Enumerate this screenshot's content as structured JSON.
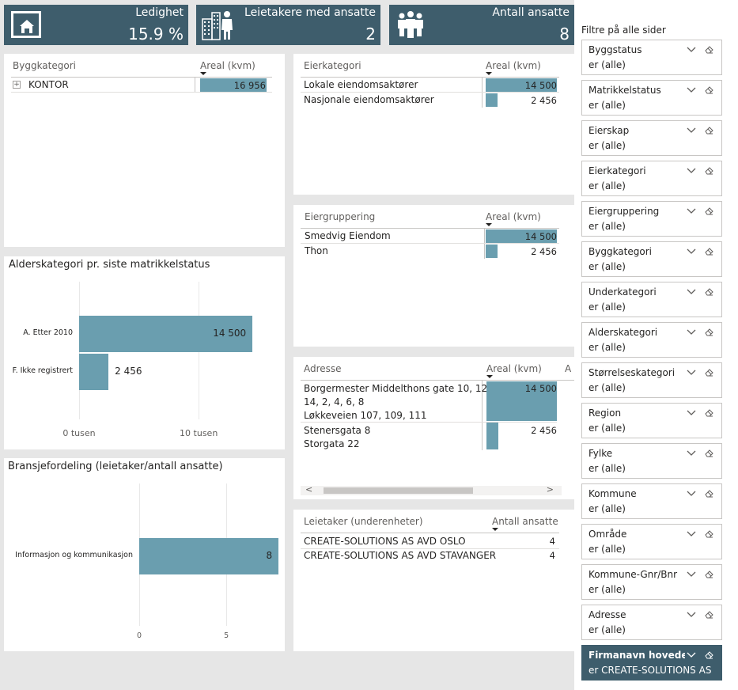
{
  "kpis": {
    "vacancy": {
      "label": "Ledighet",
      "value": "15.9 %",
      "icon": "house-icon"
    },
    "tenants": {
      "label": "Leietakere med ansatte",
      "value": "2",
      "icon": "buildings-person-icon"
    },
    "employees": {
      "label": "Antall ansatte",
      "value": "8",
      "icon": "people-icon"
    }
  },
  "byggkategori_table": {
    "col1": "Byggkategori",
    "col2": "Areal (kvm)",
    "rows": [
      {
        "label": "KONTOR",
        "value": "16 956",
        "num": 16956
      }
    ],
    "expand_glyph": "+"
  },
  "eierkategori_table": {
    "col1": "Eierkategori",
    "col2": "Areal (kvm)",
    "rows": [
      {
        "label": "Lokale eiendomsaktører",
        "value": "14 500",
        "num": 14500
      },
      {
        "label": "Nasjonale eiendomsaktører",
        "value": "2 456",
        "num": 2456
      }
    ]
  },
  "eiergruppering_table": {
    "col1": "Eiergruppering",
    "col2": "Areal (kvm)",
    "rows": [
      {
        "label": "Smedvig Eiendom",
        "value": "14 500",
        "num": 14500
      },
      {
        "label": "Thon",
        "value": "2 456",
        "num": 2456
      }
    ]
  },
  "adresse_table": {
    "col1": "Adresse",
    "col2": "Areal (kvm)",
    "col3": "A",
    "rows": [
      {
        "lines": [
          "Borgermester Middelthons gate 10, 12,",
          "14, 2, 4, 6, 8",
          "Løkkeveien 107, 109, 111"
        ],
        "value": "14 500",
        "num": 14500
      },
      {
        "lines": [
          "Stenersgata 8",
          "Storgata 22"
        ],
        "value": "2 456",
        "num": 2456
      }
    ],
    "scroll_left": "<",
    "scroll_right": ">"
  },
  "leietaker_table": {
    "col1": "Leietaker (underenheter)",
    "col2": "Antall ansatte",
    "rows": [
      {
        "label": "CREATE-SOLUTIONS AS AVD OSLO",
        "value": "4"
      },
      {
        "label": "CREATE-SOLUTIONS AS AVD STAVANGER",
        "value": "4"
      }
    ]
  },
  "chart_alder": {
    "title": "Alderskategori pr. siste matrikkelstatus",
    "chart_data": {
      "type": "bar",
      "orientation": "horizontal",
      "categories": [
        "A. Etter 2010",
        "F. Ikke registrert"
      ],
      "values": [
        14500,
        2456
      ],
      "data_labels": [
        "14 500",
        "2 456"
      ],
      "xlim": [
        0,
        17000
      ],
      "ticks": [
        {
          "v": 0,
          "label": "0 tusen"
        },
        {
          "v": 10000,
          "label": "10 tusen"
        }
      ],
      "color": "#6a9eaf"
    }
  },
  "chart_bransje": {
    "title": "Bransjefordeling (leietaker/antall ansatte)",
    "chart_data": {
      "type": "bar",
      "orientation": "horizontal",
      "categories": [
        "Informasjon og kommunikasjon"
      ],
      "values": [
        8
      ],
      "data_labels": [
        "8"
      ],
      "xlim": [
        0,
        7.9
      ],
      "ticks": [
        {
          "v": 0,
          "label": "0"
        },
        {
          "v": 5,
          "label": "5"
        }
      ],
      "color": "#6a9eaf"
    }
  },
  "filters": {
    "header": "Filtre på alle sider",
    "items": [
      {
        "name": "Byggstatus",
        "value": "er (alle)"
      },
      {
        "name": "Matrikkelstatus",
        "value": "er (alle)"
      },
      {
        "name": "Eierskap",
        "value": "er (alle)"
      },
      {
        "name": "Eierkategori",
        "value": "er (alle)"
      },
      {
        "name": "Eiergruppering",
        "value": "er (alle)"
      },
      {
        "name": "Byggkategori",
        "value": "er (alle)"
      },
      {
        "name": "Underkategori",
        "value": "er (alle)"
      },
      {
        "name": "Alderskategori",
        "value": "er (alle)"
      },
      {
        "name": "Størrelseskategori",
        "value": "er (alle)"
      },
      {
        "name": "Region",
        "value": "er (alle)"
      },
      {
        "name": "Fylke",
        "value": "er (alle)"
      },
      {
        "name": "Kommune",
        "value": "er (alle)"
      },
      {
        "name": "Område",
        "value": "er (alle)"
      },
      {
        "name": "Kommune-Gnr/Bnr",
        "value": "er (alle)"
      },
      {
        "name": "Adresse",
        "value": "er (alle)"
      },
      {
        "name": "Firmanavn hovedenhet",
        "value": "er CREATE-SOLUTIONS AS",
        "active": true
      }
    ]
  },
  "colors": {
    "accent": "#3e5d6c",
    "bar": "#6a9eaf",
    "background": "#e6e6e6"
  }
}
